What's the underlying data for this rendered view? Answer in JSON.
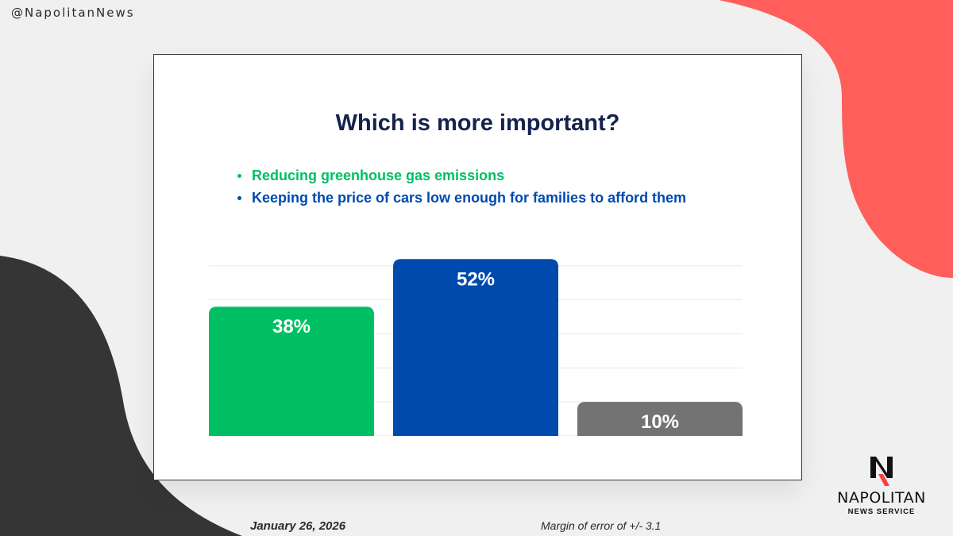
{
  "handle": "@NapolitanNews",
  "chart_data": {
    "type": "bar",
    "title": "Which is more important?",
    "categories": [
      "Reducing greenhouse gas emissions",
      "Keeping the price of cars low enough for families to afford them",
      ""
    ],
    "values": [
      38,
      52,
      10
    ],
    "labels": [
      "38%",
      "52%",
      "10%"
    ],
    "colors": [
      "#00bf63",
      "#004aad",
      "#737373"
    ],
    "ylim": [
      0,
      60
    ],
    "grid": true,
    "legend_placement": "top-left",
    "legend": [
      {
        "label": "Reducing greenhouse gas emissions",
        "color": "#00bf63"
      },
      {
        "label": "Keeping the price of cars low enough for families to afford them",
        "color": "#004aad"
      }
    ]
  },
  "footer": {
    "date": "January 26, 2026",
    "margin_of_error": "Margin of error of +/- 3.1"
  },
  "logo": {
    "name": "NAPOLITAN",
    "subtitle": "NEWS SERVICE"
  },
  "colors": {
    "background": "#f0f0f0",
    "coral": "#ff5e5b",
    "charcoal": "#353535",
    "title": "#14224e"
  }
}
